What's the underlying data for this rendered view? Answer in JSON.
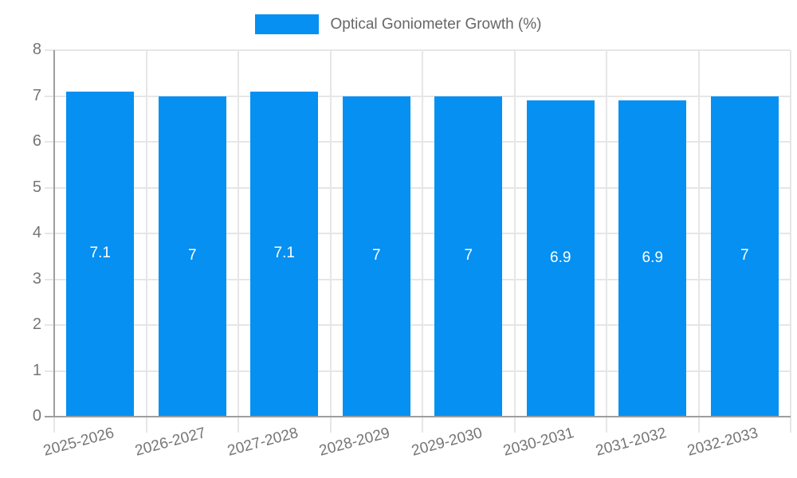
{
  "legend": {
    "position": "top",
    "swatch_color": "#0590f2"
  },
  "chart_data": {
    "type": "bar",
    "title": "Optical Goniometer Growth (%)",
    "categories": [
      "2025-2026",
      "2026-2027",
      "2027-2028",
      "2028-2029",
      "2029-2030",
      "2030-2031",
      "2031-2032",
      "2032-2033"
    ],
    "values": [
      7.1,
      7,
      7.1,
      7,
      7,
      6.9,
      6.9,
      7
    ],
    "value_labels": [
      "7.1",
      "7",
      "7.1",
      "7",
      "7",
      "6.9",
      "6.9",
      "7"
    ],
    "xlabel": "",
    "ylabel": "",
    "ylim": [
      0,
      8
    ],
    "yticks": [
      0,
      1,
      2,
      3,
      4,
      5,
      6,
      7,
      8
    ],
    "grid": true,
    "legend_position": "top",
    "colors": {
      "bar": "#0590f2",
      "value_label": "#ffffff",
      "gridline": "#e6e6e6",
      "axis": "#9e9e9e",
      "tick_label": "#757575",
      "legend_text": "#666666"
    }
  }
}
